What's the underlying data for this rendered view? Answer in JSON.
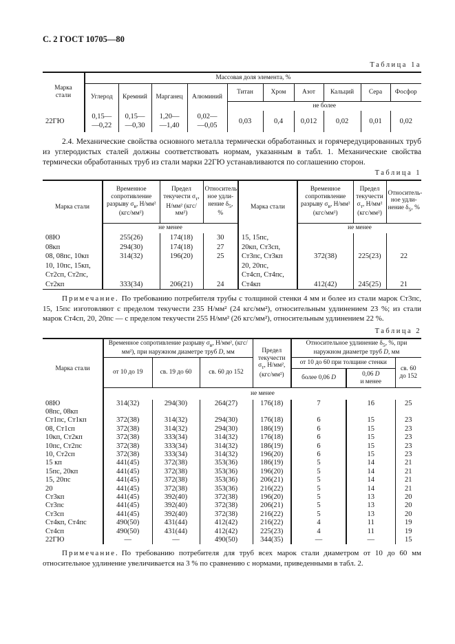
{
  "page": {
    "header": "С. 2 ГОСТ 10705—80"
  },
  "table1a": {
    "caption": "Таблица 1а",
    "marka_header": "Марка\nстали",
    "group_header": "Массовая доля элемента, %",
    "columns": [
      "Углерод",
      "Кремний",
      "Марганец",
      "Алюминий",
      "Титан",
      "Хром",
      "Азот",
      "Кальций",
      "Сера",
      "Фосфор"
    ],
    "ne_bolee": "не более",
    "rows": [
      [
        "22ГЮ",
        "0,15—\n—0,22",
        "0,15—\n—0,30",
        "1,20—\n—1,40",
        "0,02—\n—0,05",
        "0,03",
        "0,4",
        "0,012",
        "0,02",
        "0,01",
        "0,02"
      ]
    ]
  },
  "para_2_4": "2.4. Механические свойства основного металла термически обработанных и горячередуцированных труб из углеродистых сталей должны соответствовать нормам, указанным в табл. 1. Механические свойства термически обработанных труб из стали марки 22ГЮ устанавливаются по соглашению сторон.",
  "table1": {
    "caption": "Таблица 1",
    "marka_header": "Марка стали",
    "col_tensile": "Временное сопротивление разрыву σ<sub>в</sub>, Н/мм² (кгс/мм²)",
    "col_yield": "Предел текучести σ<sub>т</sub>, Н/мм² (кгс/мм²)",
    "col_elong": "Относитель-ное удли-нение δ<sub>5</sub>, %",
    "ne_menee": "не менее",
    "rows": [
      [
        "08Ю",
        "255(26)",
        "174(18)",
        "30",
        "15, 15пс,",
        "",
        "",
        ""
      ],
      [
        "08кп",
        "294(30)",
        "174(18)",
        "27",
        "20кп, Ст3сп,",
        "",
        "",
        ""
      ],
      [
        "08, 08пс, 10кп",
        "314(32)",
        "196(20)",
        "25",
        "Ст3пс, Ст3кп",
        "372(38)",
        "225(23)",
        "22"
      ],
      [
        "10, 10пс, 15кп,",
        "",
        "",
        "",
        "20, 20пс,",
        "",
        "",
        ""
      ],
      [
        "Ст2сп, Ст2пс,",
        "",
        "",
        "",
        "Ст4сп, Ст4пс,",
        "",
        "",
        ""
      ],
      [
        "Ст2кп",
        "333(34)",
        "206(21)",
        "24",
        "Ст4кп",
        "412(42)",
        "245(25)",
        "21"
      ]
    ]
  },
  "note1": {
    "lead": "Примечание.",
    "text": "По требованию потребителя трубы с толщиной стенки 4 мм и более из стали марок Ст3пс, 15, 15пс изготовляют с пределом текучести 235 Н/мм² (24 кгс/мм²), относительным удлинением 23 %; из стали марок Ст4сп, 20, 20пс — с пределом текучести 255 Н/мм² (26 кгс/мм²), относительным удлинением 22 %."
  },
  "table2": {
    "caption": "Таблица 2",
    "marka_header": "Марка стали",
    "group_tensile": "Временное сопротивление разрыву σ<sub>в</sub>, Н/мм², (кгс/мм²), при наружном диаметре труб <i>D</i>, мм",
    "col_d1": "от 10 до 19",
    "col_d2": "св. 19 до 60",
    "col_d3": "св. 60 до 152",
    "col_yield": "Предел текучести σ<sub>т</sub>, Н/мм², (кгс/мм²)",
    "group_elong": "Относительное удлинение δ<sub>5</sub>, %, при наружном диаметре труб <i>D</i>, мм",
    "sub_wall": "от 10 до 60 при толщине стенки",
    "col_w1": "более 0,06 <i>D</i>",
    "col_w2": "0,06 <i>D</i><br>и менее",
    "col_d4": "св. 60 до 152",
    "ne_menee": "не менее",
    "rows": [
      [
        "08Ю",
        "314(32)",
        "294(30)",
        "264(27)",
        "176(18)",
        "7",
        "16",
        "25"
      ],
      [
        "08пс, 08кп",
        "",
        "",
        "",
        "",
        "",
        "",
        ""
      ],
      [
        "Ст1пс, Ст1кп",
        "372(38)",
        "314(32)",
        "294(30)",
        "176(18)",
        "6",
        "15",
        "23"
      ],
      [
        "08, Ст1сп",
        "372(38)",
        "314(32)",
        "294(30)",
        "186(19)",
        "6",
        "15",
        "23"
      ],
      [
        "10кп, Ст2кп",
        "372(38)",
        "333(34)",
        "314(32)",
        "176(18)",
        "6",
        "15",
        "23"
      ],
      [
        "10пс, Ст2пс",
        "372(38)",
        "333(34)",
        "314(32)",
        "186(19)",
        "6",
        "15",
        "23"
      ],
      [
        "10, Ст2сп",
        "372(38)",
        "333(34)",
        "314(32)",
        "196(20)",
        "6",
        "15",
        "23"
      ],
      [
        "15 кп",
        "441(45)",
        "372(38)",
        "353(36)",
        "186(19)",
        "5",
        "14",
        "21"
      ],
      [
        "15пс, 20кп",
        "441(45)",
        "372(38)",
        "353(36)",
        "196(20)",
        "5",
        "14",
        "21"
      ],
      [
        "15, 20пс",
        "441(45)",
        "372(38)",
        "353(36)",
        "206(21)",
        "5",
        "14",
        "21"
      ],
      [
        "20",
        "441(45)",
        "372(38)",
        "353(36)",
        "216(22)",
        "5",
        "14",
        "21"
      ],
      [
        "Ст3кп",
        "441(45)",
        "392(40)",
        "372(38)",
        "196(20)",
        "5",
        "13",
        "20"
      ],
      [
        "Ст3пс",
        "441(45)",
        "392(40)",
        "372(38)",
        "206(21)",
        "5",
        "13",
        "20"
      ],
      [
        "Ст3сп",
        "441(45)",
        "392(40)",
        "372(38)",
        "216(22)",
        "5",
        "13",
        "20"
      ],
      [
        "Ст4кп, Ст4пс",
        "490(50)",
        "431(44)",
        "412(42)",
        "216(22)",
        "4",
        "11",
        "19"
      ],
      [
        "Ст4сп",
        "490(50)",
        "431(44)",
        "412(42)",
        "225(23)",
        "4",
        "11",
        "19"
      ],
      [
        "22ГЮ",
        "—",
        "—",
        "490(50)",
        "344(35)",
        "—",
        "—",
        "15"
      ]
    ]
  },
  "note2": {
    "lead": "Примечание.",
    "text": "По требованию потребителя для труб всех марок стали диаметром от 10 до 60 мм относительное удлинение увеличивается на 3 % по сравнению с нормами, приведенными в табл. 2."
  }
}
